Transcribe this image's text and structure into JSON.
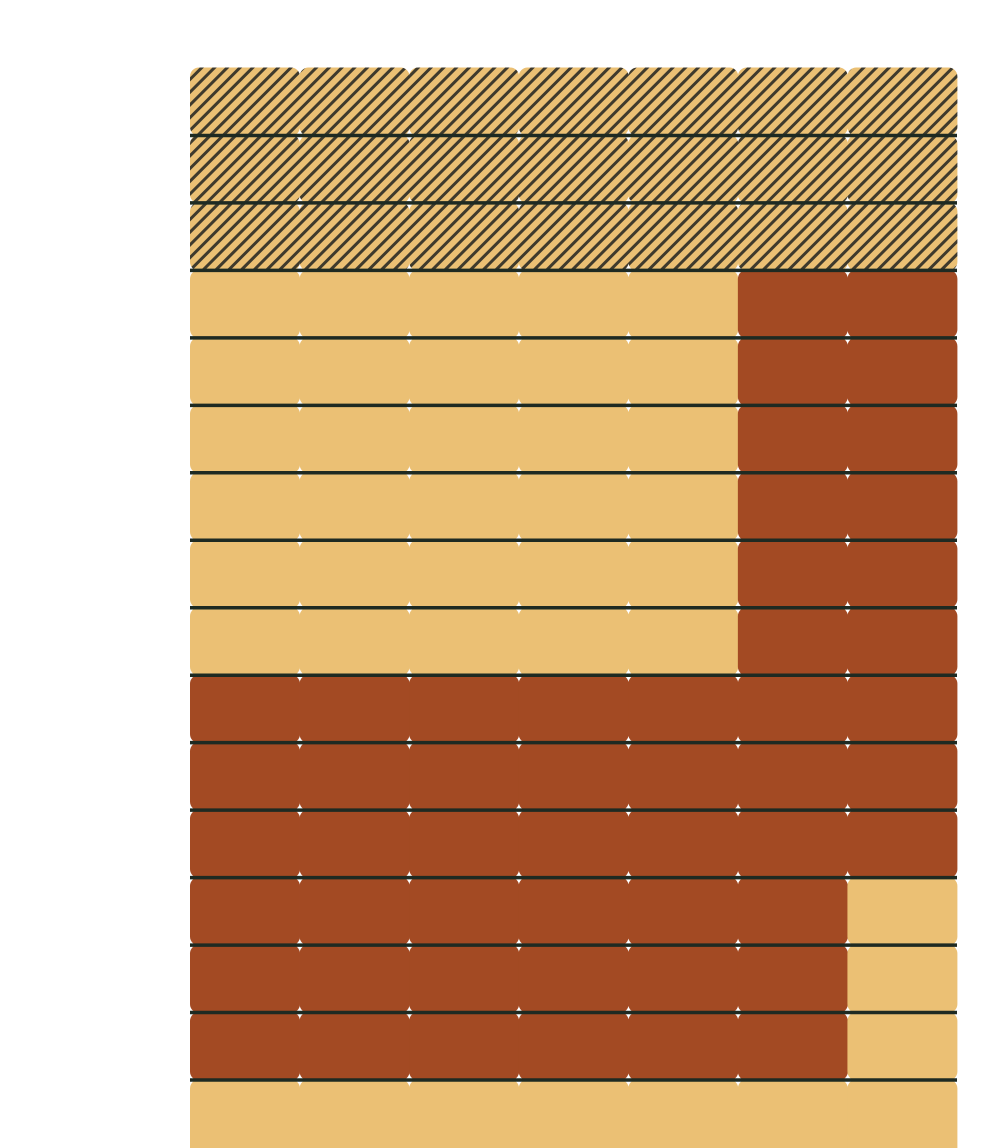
{
  "colors": {
    "background": "#ffffff",
    "tan": "#ebc074",
    "rust": "#a34a23",
    "stripe": "#3f3a2c",
    "line": "#1e2a22"
  },
  "grid": {
    "columns": 7,
    "rows": 16,
    "cells": [
      [
        "hatched",
        "hatched",
        "hatched",
        "hatched",
        "hatched",
        "hatched",
        "hatched"
      ],
      [
        "hatched",
        "hatched",
        "hatched",
        "hatched",
        "hatched",
        "hatched",
        "hatched"
      ],
      [
        "hatched",
        "hatched",
        "hatched",
        "hatched",
        "hatched",
        "hatched",
        "hatched"
      ],
      [
        "tan",
        "tan",
        "tan",
        "tan",
        "tan",
        "rust",
        "rust"
      ],
      [
        "tan",
        "tan",
        "tan",
        "tan",
        "tan",
        "rust",
        "rust"
      ],
      [
        "tan",
        "tan",
        "tan",
        "tan",
        "tan",
        "rust",
        "rust"
      ],
      [
        "tan",
        "tan",
        "tan",
        "tan",
        "tan",
        "rust",
        "rust"
      ],
      [
        "tan",
        "tan",
        "tan",
        "tan",
        "tan",
        "rust",
        "rust"
      ],
      [
        "tan",
        "tan",
        "tan",
        "tan",
        "tan",
        "rust",
        "rust"
      ],
      [
        "rust",
        "rust",
        "rust",
        "rust",
        "rust",
        "rust",
        "rust"
      ],
      [
        "rust",
        "rust",
        "rust",
        "rust",
        "rust",
        "rust",
        "rust"
      ],
      [
        "rust",
        "rust",
        "rust",
        "rust",
        "rust",
        "rust",
        "rust"
      ],
      [
        "rust",
        "rust",
        "rust",
        "rust",
        "rust",
        "rust",
        "tan"
      ],
      [
        "rust",
        "rust",
        "rust",
        "rust",
        "rust",
        "rust",
        "tan"
      ],
      [
        "rust",
        "rust",
        "rust",
        "rust",
        "rust",
        "rust",
        "tan"
      ],
      [
        "tan",
        "tan",
        "tan",
        "tan",
        "tan",
        "tan",
        "tan"
      ]
    ]
  }
}
